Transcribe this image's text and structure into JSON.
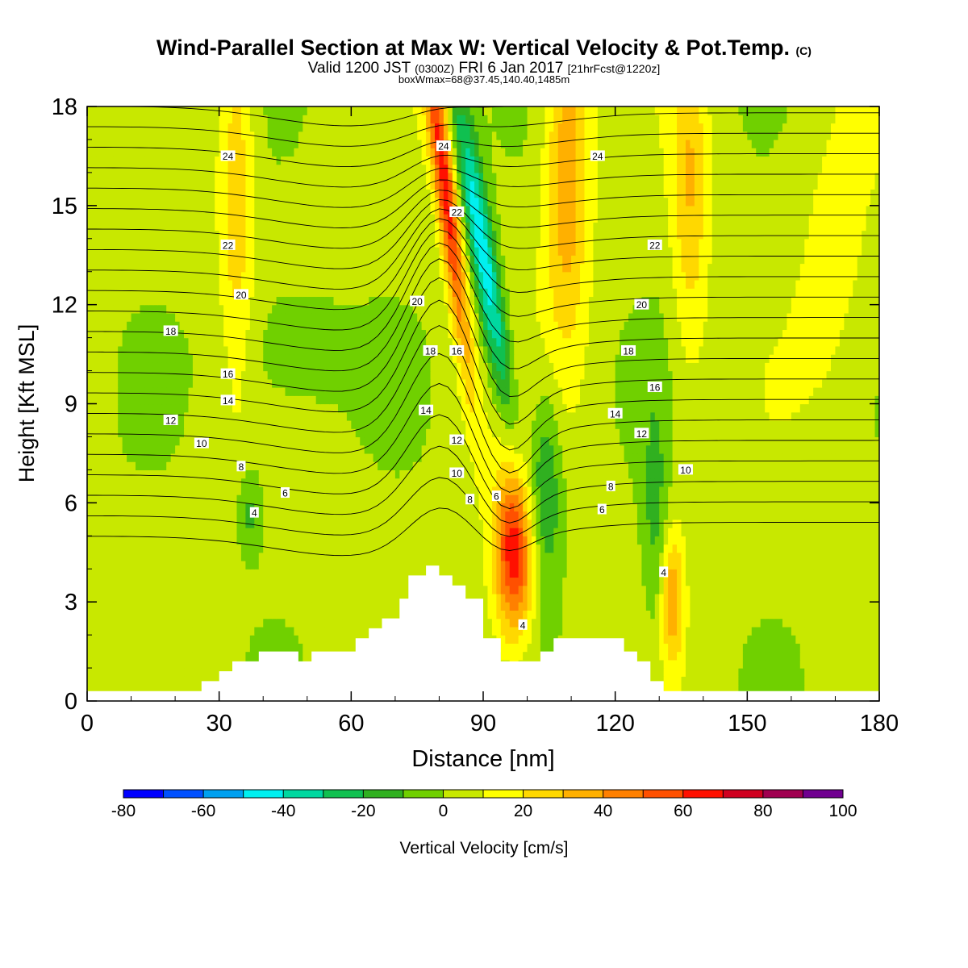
{
  "header": {
    "title": "Wind-Parallel Section at Max W: Vertical Velocity & Pot.Temp.",
    "copyright_mark": "(C)",
    "valid_prefix": "Valid 1200 JST",
    "valid_z": "(0300Z)",
    "valid_date": "FRI 6 Jan 2017",
    "forecast_info": "[21hrFcst@1220z]",
    "box_info": "boxWmax=68@37.45,140.40,1485m"
  },
  "chart_data": {
    "type": "heatmap",
    "xlabel": "Distance [nm]",
    "ylabel": "Height [Kft MSL]",
    "xlim": [
      0,
      180
    ],
    "ylim": [
      0,
      18
    ],
    "x_ticks": [
      "0",
      "30",
      "60",
      "90",
      "120",
      "150",
      "180"
    ],
    "y_ticks": [
      "0",
      "3",
      "6",
      "9",
      "12",
      "15",
      "18"
    ],
    "colorbar": {
      "label": "Vertical Velocity [cm/s]",
      "tick_labels": [
        "-80",
        "-60",
        "-40",
        "-20",
        "0",
        "20",
        "40",
        "60",
        "80",
        "100"
      ],
      "bounds": [
        -80,
        -70,
        -60,
        -50,
        -40,
        -30,
        -20,
        -10,
        0,
        10,
        20,
        30,
        40,
        50,
        60,
        70,
        80,
        90,
        100
      ],
      "colors": [
        "#0000ff",
        "#0050ff",
        "#00a0f0",
        "#00f0f0",
        "#00d8a0",
        "#10c050",
        "#30b020",
        "#70d000",
        "#c8e800",
        "#ffff00",
        "#ffd800",
        "#ffb000",
        "#ff8000",
        "#ff5000",
        "#ff1000",
        "#d00020",
        "#a00050",
        "#700090"
      ]
    },
    "contour_labels": [
      {
        "text": "24",
        "x": 32,
        "y": 16.5
      },
      {
        "text": "22",
        "x": 32,
        "y": 13.8
      },
      {
        "text": "20",
        "x": 35,
        "y": 12.3
      },
      {
        "text": "18",
        "x": 19,
        "y": 11.2
      },
      {
        "text": "16",
        "x": 32,
        "y": 9.9
      },
      {
        "text": "14",
        "x": 32,
        "y": 9.1
      },
      {
        "text": "12",
        "x": 19,
        "y": 8.5
      },
      {
        "text": "10",
        "x": 26,
        "y": 7.8
      },
      {
        "text": "8",
        "x": 35,
        "y": 7.1
      },
      {
        "text": "6",
        "x": 45,
        "y": 6.3
      },
      {
        "text": "4",
        "x": 38,
        "y": 5.7
      },
      {
        "text": "24",
        "x": 81,
        "y": 16.8
      },
      {
        "text": "22",
        "x": 84,
        "y": 14.8
      },
      {
        "text": "20",
        "x": 75,
        "y": 12.1
      },
      {
        "text": "18",
        "x": 78,
        "y": 10.6
      },
      {
        "text": "16",
        "x": 84,
        "y": 10.6
      },
      {
        "text": "14",
        "x": 77,
        "y": 8.8
      },
      {
        "text": "12",
        "x": 84,
        "y": 7.9
      },
      {
        "text": "10",
        "x": 84,
        "y": 6.9
      },
      {
        "text": "8",
        "x": 87,
        "y": 6.1
      },
      {
        "text": "6",
        "x": 93,
        "y": 6.2
      },
      {
        "text": "4",
        "x": 99,
        "y": 2.3
      },
      {
        "text": "24",
        "x": 116,
        "y": 16.5
      },
      {
        "text": "22",
        "x": 129,
        "y": 13.8
      },
      {
        "text": "20",
        "x": 126,
        "y": 12.0
      },
      {
        "text": "18",
        "x": 123,
        "y": 10.6
      },
      {
        "text": "16",
        "x": 129,
        "y": 9.5
      },
      {
        "text": "14",
        "x": 120,
        "y": 8.7
      },
      {
        "text": "12",
        "x": 126,
        "y": 8.1
      },
      {
        "text": "10",
        "x": 136,
        "y": 7.0
      },
      {
        "text": "8",
        "x": 119,
        "y": 6.5
      },
      {
        "text": "6",
        "x": 117,
        "y": 5.8
      },
      {
        "text": "4",
        "x": 131,
        "y": 3.9
      }
    ]
  }
}
